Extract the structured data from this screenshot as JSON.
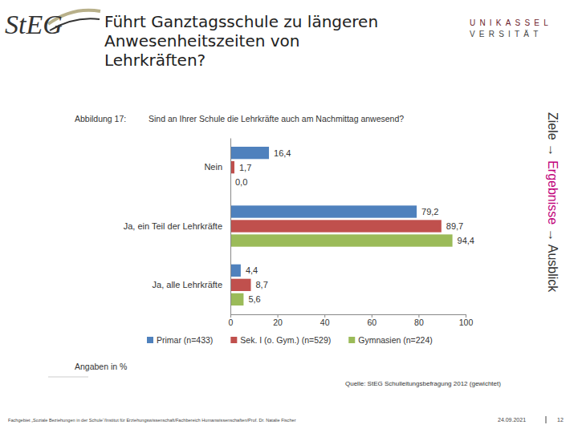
{
  "slide": {
    "logo": "StEG",
    "title_lines": [
      "Führt Ganztagsschule zu längeren",
      "Anwesenheitszeiten von",
      "Lehrkräften?"
    ],
    "university": [
      "UNIKASSEL",
      "VERSITÄT"
    ],
    "sidebar": [
      "Ziele →",
      "Ergebnisse",
      "→ Ausblick"
    ],
    "source": "Quelle: StEG Schulleitungsbefragung 2012 (gewichtet)",
    "footer": "Fachgebiet „Soziale Beziehungen in der Schule“/Institut für Erziehungswissenschaft/Fachbereich Humanwissenschaften/Prof. Dr. Natalie Fischer",
    "date": "24.09.2021",
    "page": 12
  },
  "chart_data": {
    "type": "bar",
    "orientation": "horizontal",
    "title": "Sind an Ihrer Schule die Lehrkräfte auch am Nachmittag anwesend?",
    "annotations": [
      "Abbildung 17:",
      "Angaben in %"
    ],
    "categories": [
      "Nein",
      "Ja, ein Teil der Lehrkräfte",
      "Ja, alle Lehrkräfte"
    ],
    "series": [
      {
        "name": "Primar (n=433)",
        "color": "#4f81bd",
        "values": [
          16.4,
          79.2,
          4.4
        ],
        "value_labels": [
          "16,4",
          "79,2",
          "4,4"
        ]
      },
      {
        "name": "Sek. I (o. Gym.) (n=529)",
        "color": "#c0504d",
        "values": [
          1.7,
          89.7,
          8.7
        ],
        "value_labels": [
          "1,7",
          "89,7",
          "8,7"
        ]
      },
      {
        "name": "Gymnasien (n=224)",
        "color": "#9bbb59",
        "values": [
          0.0,
          94.4,
          5.6
        ],
        "value_labels": [
          "0,0",
          "94,4",
          "5,6"
        ]
      }
    ],
    "xlim": [
      0,
      100
    ],
    "xticks": [
      0,
      20,
      40,
      60,
      80,
      100
    ],
    "grid": false,
    "legend": "bottom",
    "data_labels": true
  }
}
